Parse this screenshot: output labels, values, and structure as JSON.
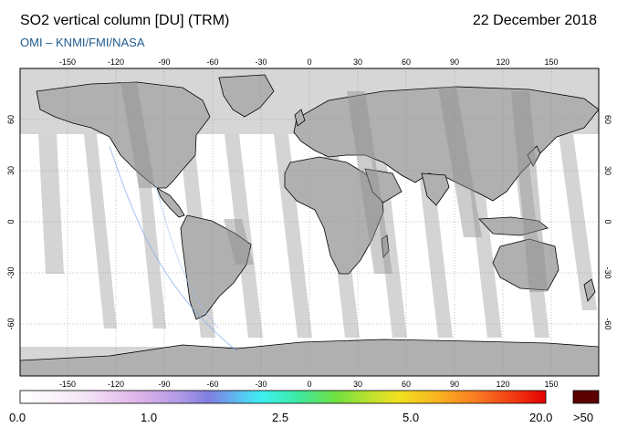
{
  "header": {
    "title": "SO2 vertical column [DU] (TRM)",
    "date": "22 December 2018",
    "subtitle": "OMI  –  KNMI/FMI/NASA"
  },
  "map": {
    "lon_ticks": [
      "-150",
      "-120",
      "-90",
      "-60",
      "-30",
      "0",
      "30",
      "60",
      "90",
      "120",
      "150"
    ],
    "lat_ticks": [
      "60",
      "30",
      "0",
      "-30",
      "-60"
    ],
    "colors": {
      "ocean": "#ffffff",
      "land": "#b0b0b0",
      "no_data": "#d6d6d6",
      "swath_gap": "#d4d4d4",
      "coast": "#000000",
      "grid": "#888888"
    }
  },
  "colorbar": {
    "labels": [
      "0.0",
      "1.0",
      "2.5",
      "5.0",
      "20.0"
    ],
    "overflow_label": ">50",
    "overflow_color": "#5a0000"
  }
}
